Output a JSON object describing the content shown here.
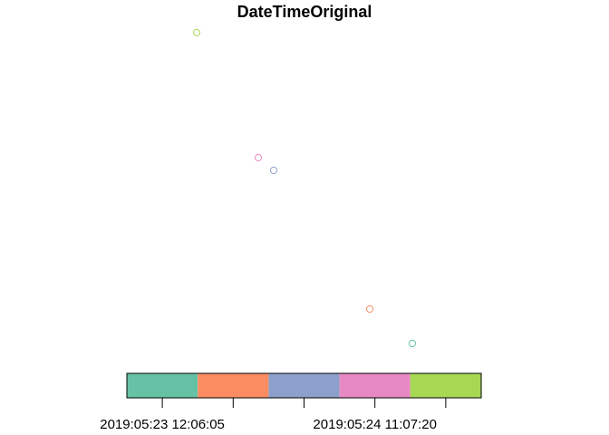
{
  "chart_data": {
    "type": "scatter",
    "title": "DateTimeOriginal",
    "point_style": "open-circle",
    "points": [
      {
        "class": 5,
        "color": "#A6D854"
      },
      {
        "class": 4,
        "color": "#E78AC3"
      },
      {
        "class": 3,
        "color": "#8DA0CB"
      },
      {
        "class": 2,
        "color": "#FC8D62"
      },
      {
        "class": 1,
        "color": "#66C2A5"
      }
    ],
    "legend": {
      "type": "color-bar",
      "placement": "bottom",
      "bins": [
        {
          "color": "#66C2A5"
        },
        {
          "color": "#FC8D62"
        },
        {
          "color": "#8DA0CB"
        },
        {
          "color": "#E78AC3"
        },
        {
          "color": "#A6D854"
        }
      ],
      "tick_count": 5,
      "tick_labels": [
        "2019:05:23 12:06:05",
        "2019:05:24 11:07:20"
      ]
    }
  }
}
